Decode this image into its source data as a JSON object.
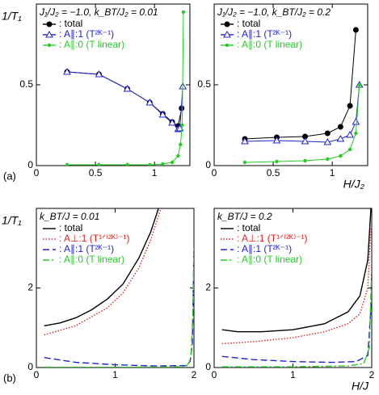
{
  "chart_data": [
    {
      "type": "line",
      "title": "J₁/J₂ = −1.0, k_BT/J₂ = 0.01",
      "ylabel": "1/T₁",
      "panel_label": "(a)",
      "xlim": [
        0,
        1.3
      ],
      "ylim": [
        0,
        1
      ],
      "xticks": [
        0,
        0.5,
        1
      ],
      "yticks": [
        0,
        0.5
      ],
      "legend": "top-left",
      "series": [
        {
          "name": ": total",
          "color": "#000000",
          "marker": "circle",
          "dash": "solid",
          "x": [
            0.26,
            0.53,
            0.77,
            0.96,
            1.07,
            1.15,
            1.2,
            1.23
          ],
          "values": [
            0.58,
            0.565,
            0.475,
            0.39,
            0.32,
            0.27,
            0.245,
            0.355
          ]
        },
        {
          "name": ": A∥:1 (T²ᴷ⁻¹)",
          "color": "#2222cc",
          "marker": "triangle",
          "dash": "solid",
          "x": [
            0.26,
            0.53,
            0.77,
            0.96,
            1.07,
            1.15,
            1.2,
            1.215,
            1.24
          ],
          "values": [
            0.58,
            0.565,
            0.475,
            0.39,
            0.315,
            0.265,
            0.225,
            0.23,
            0.49
          ]
        },
        {
          "name": ": A∥:0 (T linear)",
          "color": "#22cc22",
          "marker": "dot",
          "dash": "solid",
          "x": [
            0.26,
            0.53,
            0.77,
            0.96,
            1.07,
            1.15,
            1.2,
            1.22,
            1.235,
            1.245
          ],
          "values": [
            0.005,
            0.005,
            0.005,
            0.005,
            0.01,
            0.02,
            0.06,
            0.13,
            0.25,
            0.95
          ]
        }
      ]
    },
    {
      "type": "line",
      "title": "J₁/J₂ = −1.0, k_BT/J₂ = 0.2",
      "xlabel": "H/J₂",
      "xlim": [
        0,
        1.3
      ],
      "ylim": [
        0,
        1
      ],
      "xticks": [
        0,
        0.5,
        1
      ],
      "yticks": [
        0,
        0.5
      ],
      "legend": "top-left",
      "series": [
        {
          "name": ": total",
          "color": "#000000",
          "marker": "circle",
          "dash": "solid",
          "x": [
            0.26,
            0.53,
            0.77,
            0.96,
            1.07,
            1.15,
            1.2
          ],
          "values": [
            0.165,
            0.175,
            0.18,
            0.2,
            0.24,
            0.37,
            0.84
          ]
        },
        {
          "name": ": A∥:1 (T²ᴷ⁻¹)",
          "color": "#2222cc",
          "marker": "triangle",
          "dash": "solid",
          "x": [
            0.26,
            0.53,
            0.77,
            0.96,
            1.07,
            1.15,
            1.2,
            1.23
          ],
          "values": [
            0.15,
            0.155,
            0.15,
            0.145,
            0.165,
            0.19,
            0.27,
            0.5
          ]
        },
        {
          "name": ": A∥:0 (T linear)",
          "color": "#22cc22",
          "marker": "dot",
          "dash": "solid",
          "x": [
            0.26,
            0.53,
            0.77,
            0.96,
            1.07,
            1.15,
            1.2,
            1.23
          ],
          "values": [
            0.02,
            0.025,
            0.03,
            0.04,
            0.06,
            0.1,
            0.2,
            0.5
          ]
        }
      ]
    },
    {
      "type": "line",
      "title": "k_BT/J = 0.01",
      "ylabel": "1/T₁",
      "panel_label": "(b)",
      "xlim": [
        0,
        2
      ],
      "ylim": [
        0,
        4
      ],
      "xticks": [
        0,
        1,
        2
      ],
      "yticks": [
        0,
        2
      ],
      "legend": "top-left",
      "series": [
        {
          "name": ": total",
          "color": "#000000",
          "marker": "none",
          "dash": "solid",
          "x": [
            0.1,
            0.3,
            0.5,
            0.7,
            0.9,
            1.1,
            1.3,
            1.45,
            1.55
          ],
          "values": [
            1.05,
            1.12,
            1.25,
            1.45,
            1.72,
            2.1,
            2.75,
            3.4,
            4.0
          ]
        },
        {
          "name": ": A⊥:1 (T¹ᐟ⁽²ᴷ⁾⁻¹)",
          "color": "#dd2222",
          "marker": "none",
          "dash": "dotted",
          "x": [
            0.1,
            0.5,
            0.9,
            1.1,
            1.3,
            1.45,
            1.58
          ],
          "values": [
            0.82,
            1.05,
            1.5,
            1.88,
            2.5,
            3.2,
            4.0
          ]
        },
        {
          "name": ": A∥:1 (T²ᴷ⁻¹)",
          "color": "#2222cc",
          "marker": "none",
          "dash": "dashed",
          "x": [
            0.1,
            0.5,
            1,
            1.5,
            1.9,
            1.95,
            1.98,
            2.0
          ],
          "values": [
            0.25,
            0.13,
            0.07,
            0.04,
            0.05,
            0.15,
            0.6,
            3.0
          ]
        },
        {
          "name": ": A∥:0 (T linear)",
          "color": "#22cc22",
          "marker": "none",
          "dash": "dashdot",
          "x": [
            0.1,
            1,
            1.9,
            1.96,
            1.99,
            2.0
          ],
          "values": [
            0.01,
            0.005,
            0.02,
            0.2,
            1.5,
            3.0
          ]
        }
      ]
    },
    {
      "type": "line",
      "title": "k_BT/J = 0.2",
      "xlabel": "H/J",
      "xlim": [
        0,
        2
      ],
      "ylim": [
        0,
        4
      ],
      "xticks": [
        0,
        1,
        2
      ],
      "yticks": [
        0,
        2
      ],
      "legend": "top-left",
      "series": [
        {
          "name": ": total",
          "color": "#000000",
          "marker": "none",
          "dash": "solid",
          "x": [
            0.1,
            0.3,
            0.6,
            1,
            1.4,
            1.7,
            1.85,
            1.95,
            1.99
          ],
          "values": [
            0.95,
            0.9,
            0.9,
            0.95,
            1.1,
            1.4,
            1.8,
            2.7,
            4.0
          ]
        },
        {
          "name": ": A⊥:1 (T¹ᐟ⁽²ᴷ⁾⁻¹)",
          "color": "#dd2222",
          "marker": "none",
          "dash": "dotted",
          "x": [
            0.1,
            0.5,
            1,
            1.4,
            1.7,
            1.85,
            1.95,
            1.99
          ],
          "values": [
            0.6,
            0.65,
            0.75,
            0.9,
            1.1,
            1.35,
            2.0,
            3.5
          ]
        },
        {
          "name": ": A∥:1 (T²ᴷ⁻¹)",
          "color": "#2222cc",
          "marker": "none",
          "dash": "dashed",
          "x": [
            0.1,
            0.5,
            1,
            1.5,
            1.8,
            1.95,
            1.99,
            2.0
          ],
          "values": [
            0.28,
            0.2,
            0.15,
            0.13,
            0.15,
            0.3,
            1.5,
            2.5
          ]
        },
        {
          "name": ": A∥:0 (T linear)",
          "color": "#22cc22",
          "marker": "none",
          "dash": "dashdot",
          "x": [
            0.1,
            1,
            1.7,
            1.9,
            1.97,
            2.0
          ],
          "values": [
            0.02,
            0.02,
            0.04,
            0.1,
            0.5,
            2.5
          ]
        }
      ]
    }
  ]
}
